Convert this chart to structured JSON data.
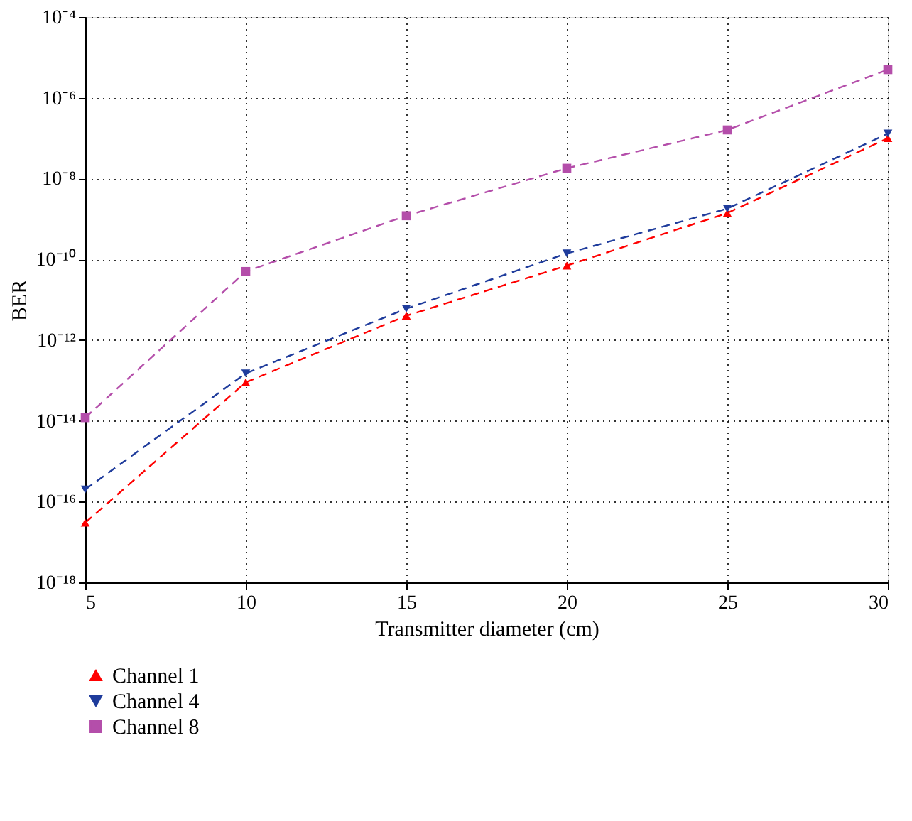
{
  "chart_data": {
    "type": "line",
    "xlabel": "Transmitter diameter (cm)",
    "ylabel": "BER",
    "x": [
      5,
      10,
      15,
      20,
      25,
      30
    ],
    "series": [
      {
        "name": "Channel 1",
        "color": "#ff0000",
        "marker": "triangle",
        "values": [
          3e-17,
          9e-14,
          4e-12,
          7e-11,
          1.4e-09,
          1e-07
        ]
      },
      {
        "name": "Channel 4",
        "color": "#1f3c9c",
        "marker": "triangle-down",
        "values": [
          2e-16,
          1.5e-13,
          6e-12,
          1.4e-10,
          1.8e-09,
          1.3e-07
        ]
      },
      {
        "name": "Channel 8",
        "color": "#b44eaa",
        "marker": "square",
        "values": [
          1.2e-14,
          5e-11,
          1.2e-09,
          1.8e-08,
          1.6e-07,
          5e-06
        ]
      }
    ],
    "log": "y",
    "line_style": "dashed",
    "grid": true,
    "legend": "bottom",
    "xlim": [
      5,
      30
    ],
    "xticks": [
      5,
      10,
      15,
      20,
      25,
      30
    ],
    "ylim": [
      1e-18,
      0.0001
    ],
    "yticks": [
      {
        "value": 1e-18,
        "label": "10⁻¹⁸"
      },
      {
        "value": 1e-16,
        "label": "10⁻¹⁶"
      },
      {
        "value": 1e-14,
        "label": "10⁻¹⁴"
      },
      {
        "value": 1e-12,
        "label": "10⁻¹²"
      },
      {
        "value": 1e-10,
        "label": "10⁻¹⁰"
      },
      {
        "value": 1e-08,
        "label": "10⁻⁸"
      },
      {
        "value": 1e-06,
        "label": "10⁻⁶"
      },
      {
        "value": 0.0001,
        "label": "10⁻⁴"
      }
    ]
  }
}
